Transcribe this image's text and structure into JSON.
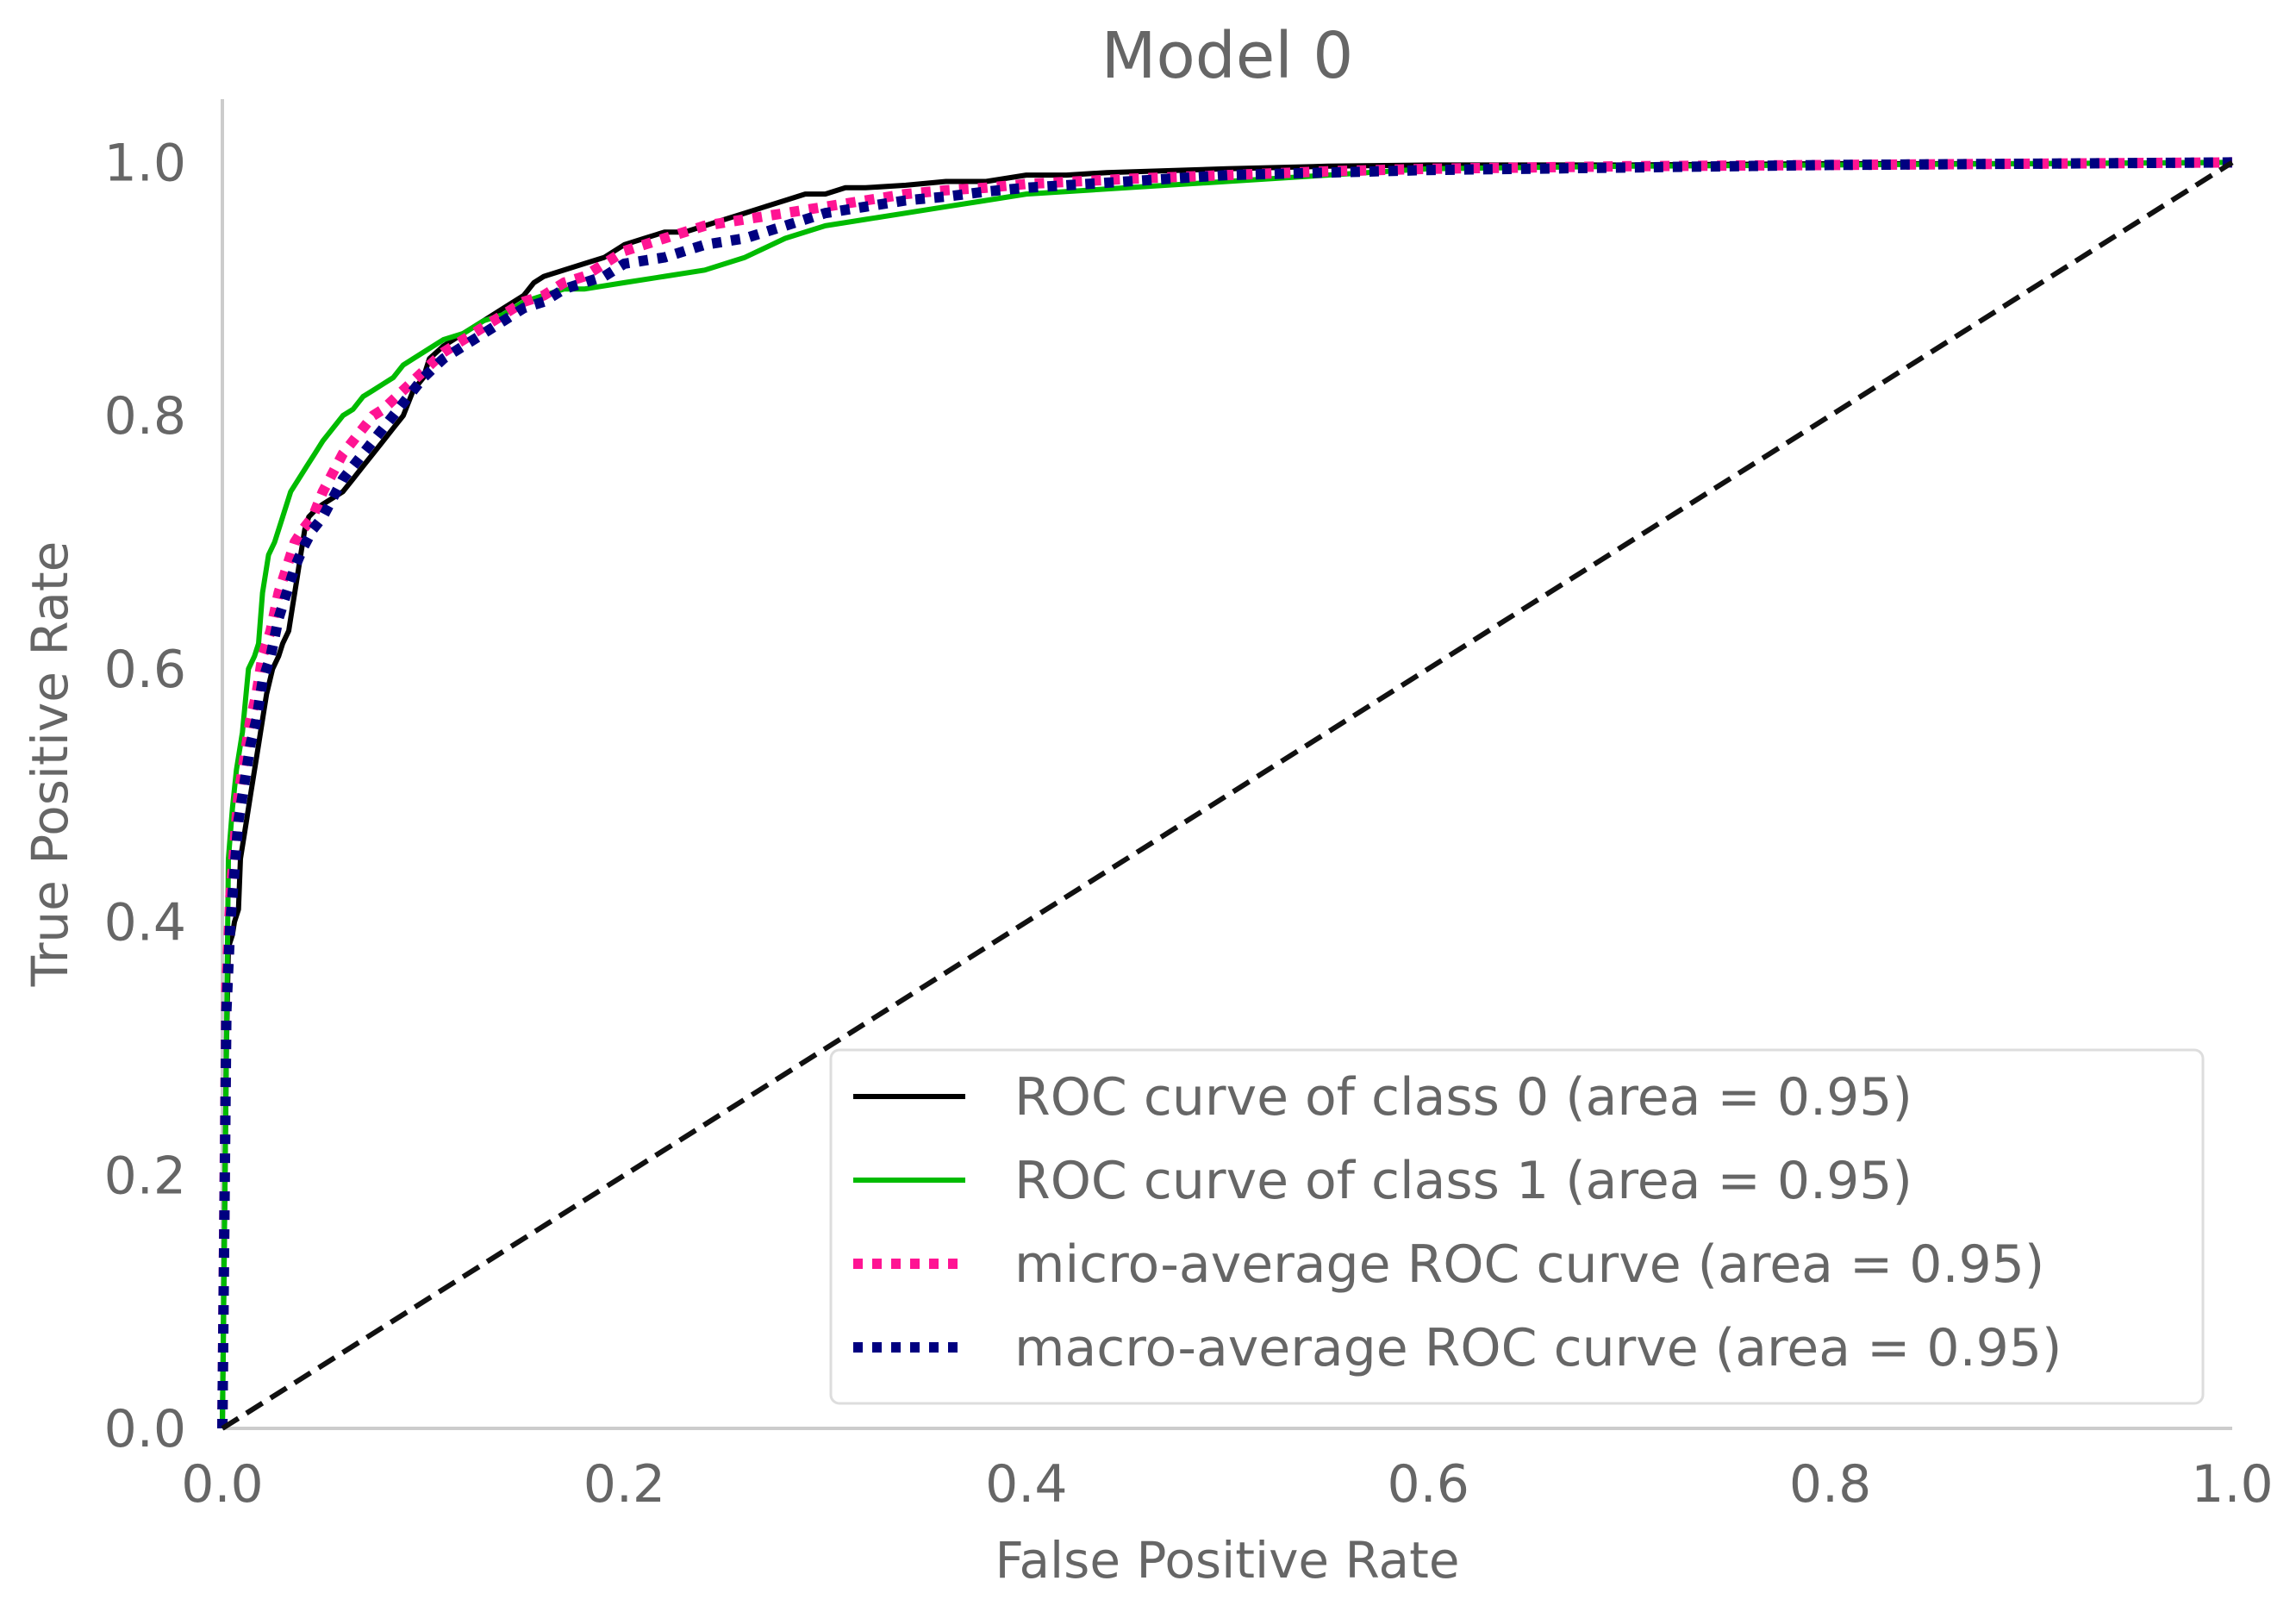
{
  "chart_data": {
    "type": "line",
    "title": "Model 0",
    "xlabel": "False Positive Rate",
    "ylabel": "True Positive Rate",
    "xlim": [
      0.0,
      1.0
    ],
    "ylim": [
      0.0,
      1.05
    ],
    "xticks": [
      "0.0",
      "0.2",
      "0.4",
      "0.6",
      "0.8",
      "1.0"
    ],
    "yticks": [
      "0.0",
      "0.2",
      "0.4",
      "0.6",
      "0.8",
      "1.0"
    ],
    "grid": false,
    "legend_position": "lower-right",
    "series": [
      {
        "name": "ROC curve of class 0 (area = 0.95)",
        "color": "#000000",
        "style": "solid",
        "x": [
          0.0,
          0.002,
          0.003,
          0.005,
          0.006,
          0.008,
          0.009,
          0.012,
          0.014,
          0.016,
          0.018,
          0.02,
          0.022,
          0.025,
          0.028,
          0.03,
          0.033,
          0.035,
          0.037,
          0.039,
          0.041,
          0.043,
          0.046,
          0.05,
          0.055,
          0.06,
          0.065,
          0.07,
          0.075,
          0.08,
          0.085,
          0.09,
          0.095,
          0.1,
          0.103,
          0.11,
          0.12,
          0.13,
          0.14,
          0.15,
          0.155,
          0.16,
          0.17,
          0.18,
          0.19,
          0.2,
          0.21,
          0.22,
          0.23,
          0.24,
          0.25,
          0.26,
          0.27,
          0.28,
          0.29,
          0.3,
          0.31,
          0.32,
          0.34,
          0.36,
          0.38,
          0.4,
          0.42,
          0.44,
          0.5,
          0.55,
          0.6,
          0.7,
          0.8,
          0.9,
          1.0
        ],
        "y": [
          0.0,
          0.3,
          0.38,
          0.39,
          0.4,
          0.41,
          0.45,
          0.48,
          0.5,
          0.52,
          0.54,
          0.56,
          0.58,
          0.6,
          0.61,
          0.62,
          0.63,
          0.65,
          0.67,
          0.69,
          0.71,
          0.72,
          0.725,
          0.73,
          0.735,
          0.74,
          0.75,
          0.76,
          0.77,
          0.78,
          0.79,
          0.8,
          0.82,
          0.83,
          0.845,
          0.855,
          0.865,
          0.875,
          0.885,
          0.895,
          0.905,
          0.91,
          0.915,
          0.92,
          0.925,
          0.935,
          0.94,
          0.945,
          0.945,
          0.95,
          0.955,
          0.96,
          0.965,
          0.97,
          0.975,
          0.975,
          0.98,
          0.98,
          0.982,
          0.985,
          0.985,
          0.99,
          0.99,
          0.992,
          0.995,
          0.997,
          0.998,
          0.998,
          0.999,
          0.999,
          1.0
        ]
      },
      {
        "name": "ROC curve of class 1 (area = 0.95)",
        "color": "#00bb00",
        "style": "solid",
        "x": [
          0.0,
          0.002,
          0.003,
          0.005,
          0.007,
          0.01,
          0.013,
          0.016,
          0.018,
          0.02,
          0.023,
          0.026,
          0.028,
          0.03,
          0.034,
          0.038,
          0.042,
          0.046,
          0.05,
          0.055,
          0.06,
          0.065,
          0.07,
          0.075,
          0.08,
          0.085,
          0.09,
          0.095,
          0.1,
          0.11,
          0.12,
          0.13,
          0.14,
          0.15,
          0.16,
          0.17,
          0.18,
          0.2,
          0.22,
          0.24,
          0.26,
          0.28,
          0.3,
          0.32,
          0.34,
          0.36,
          0.38,
          0.4,
          0.45,
          0.5,
          0.55,
          0.6,
          0.7,
          0.8,
          0.9,
          1.0
        ],
        "y": [
          0.0,
          0.3,
          0.45,
          0.49,
          0.52,
          0.55,
          0.6,
          0.61,
          0.62,
          0.66,
          0.69,
          0.7,
          0.71,
          0.72,
          0.74,
          0.75,
          0.76,
          0.77,
          0.78,
          0.79,
          0.8,
          0.805,
          0.815,
          0.82,
          0.825,
          0.83,
          0.84,
          0.845,
          0.85,
          0.86,
          0.865,
          0.875,
          0.88,
          0.89,
          0.895,
          0.9,
          0.9,
          0.905,
          0.91,
          0.915,
          0.925,
          0.94,
          0.95,
          0.955,
          0.96,
          0.965,
          0.97,
          0.975,
          0.98,
          0.985,
          0.99,
          0.995,
          0.997,
          0.998,
          0.999,
          1.0
        ]
      },
      {
        "name": "micro-average ROC curve (area = 0.95)",
        "color": "#ff1493",
        "style": "dotted",
        "x": [
          0.0,
          0.002,
          0.004,
          0.006,
          0.008,
          0.011,
          0.014,
          0.017,
          0.02,
          0.024,
          0.028,
          0.032,
          0.036,
          0.04,
          0.045,
          0.05,
          0.055,
          0.06,
          0.065,
          0.07,
          0.075,
          0.08,
          0.09,
          0.1,
          0.11,
          0.12,
          0.13,
          0.14,
          0.15,
          0.16,
          0.17,
          0.18,
          0.19,
          0.2,
          0.22,
          0.24,
          0.26,
          0.28,
          0.3,
          0.32,
          0.34,
          0.36,
          0.38,
          0.4,
          0.45,
          0.5,
          0.55,
          0.6,
          0.7,
          0.8,
          0.9,
          1.0
        ],
        "y": [
          0.0,
          0.35,
          0.42,
          0.46,
          0.5,
          0.53,
          0.56,
          0.58,
          0.61,
          0.63,
          0.66,
          0.68,
          0.7,
          0.71,
          0.72,
          0.74,
          0.755,
          0.77,
          0.78,
          0.79,
          0.8,
          0.805,
          0.82,
          0.835,
          0.85,
          0.86,
          0.87,
          0.88,
          0.89,
          0.895,
          0.905,
          0.91,
          0.92,
          0.93,
          0.94,
          0.95,
          0.955,
          0.96,
          0.965,
          0.97,
          0.975,
          0.978,
          0.98,
          0.983,
          0.987,
          0.99,
          0.993,
          0.995,
          0.997,
          0.998,
          0.999,
          1.0
        ]
      },
      {
        "name": "macro-average ROC curve (area = 0.95)",
        "color": "#000080",
        "style": "dotted",
        "x": [
          0.0,
          0.002,
          0.004,
          0.006,
          0.008,
          0.011,
          0.014,
          0.017,
          0.02,
          0.024,
          0.028,
          0.032,
          0.036,
          0.04,
          0.045,
          0.05,
          0.055,
          0.06,
          0.065,
          0.07,
          0.075,
          0.08,
          0.09,
          0.1,
          0.11,
          0.12,
          0.13,
          0.14,
          0.15,
          0.16,
          0.17,
          0.18,
          0.19,
          0.2,
          0.22,
          0.24,
          0.26,
          0.28,
          0.3,
          0.32,
          0.34,
          0.36,
          0.38,
          0.4,
          0.45,
          0.5,
          0.55,
          0.6,
          0.7,
          0.8,
          0.9,
          1.0
        ],
        "y": [
          0.0,
          0.33,
          0.4,
          0.44,
          0.48,
          0.51,
          0.54,
          0.56,
          0.59,
          0.61,
          0.64,
          0.66,
          0.68,
          0.695,
          0.71,
          0.72,
          0.735,
          0.75,
          0.76,
          0.77,
          0.78,
          0.79,
          0.81,
          0.83,
          0.845,
          0.855,
          0.865,
          0.875,
          0.885,
          0.89,
          0.9,
          0.905,
          0.91,
          0.92,
          0.925,
          0.935,
          0.94,
          0.95,
          0.96,
          0.965,
          0.97,
          0.973,
          0.977,
          0.98,
          0.985,
          0.99,
          0.992,
          0.994,
          0.996,
          0.998,
          0.999,
          1.0
        ]
      },
      {
        "name": "",
        "color": "#111111",
        "style": "dashed",
        "x": [
          0.0,
          1.0
        ],
        "y": [
          0.0,
          1.0
        ]
      }
    ]
  }
}
